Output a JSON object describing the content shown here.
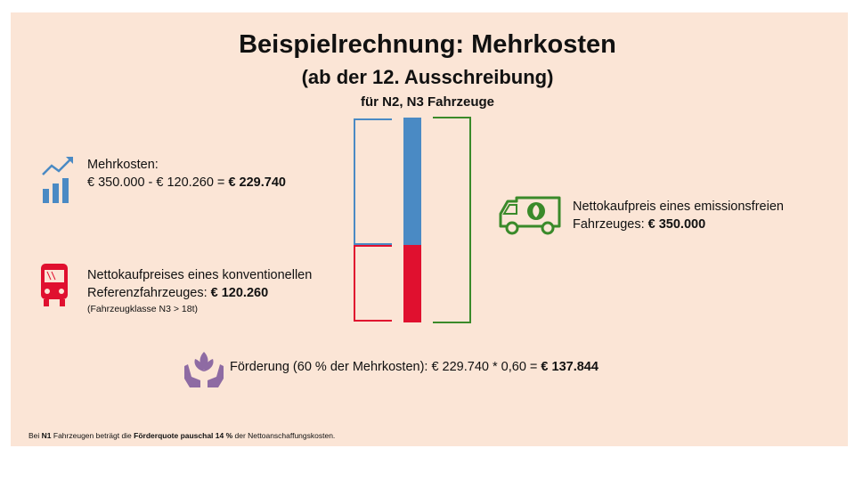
{
  "title": "Beispielrechnung: Mehrkosten",
  "subtitle": "(ab der 12. Ausschreibung)",
  "subtitle2": "für N2, N3 Fahrzeuge",
  "mehrkosten": {
    "label": "Mehrkosten:",
    "formula": "€ 350.000 - € 120.260 = ",
    "result": "€ 229.740",
    "icon": "chart-growth-icon"
  },
  "konventionell": {
    "line1": "Nettokaufpreises eines konventionellen",
    "line2": "Referenzfahrzeuges: ",
    "price": "€ 120.260",
    "note": "(Fahrzeugklasse N3 > 18t)",
    "icon": "bus-icon"
  },
  "emissionsfrei": {
    "line1": "Nettokaufpreis eines emissionsfreien",
    "line2": "Fahrzeuges: ",
    "price": "€ 350.000",
    "icon": "electric-van-icon"
  },
  "foerderung": {
    "text": "Förderung (60 % der Mehrkosten): € 229.740 * 0,60 = ",
    "result": "€ 137.844",
    "icon": "hands-plant-icon"
  },
  "footnote": {
    "p1": "Bei ",
    "b1": "N1",
    "p2": " Fahrzeugen beträgt die ",
    "b2": "Förderquote pauschal 14 %",
    "p3": " der Nettoanschaffungskosten."
  },
  "colors": {
    "blue": "#4a8ac4",
    "red": "#e0102f",
    "green": "#3a8a2a",
    "background": "#fbe5d6"
  }
}
